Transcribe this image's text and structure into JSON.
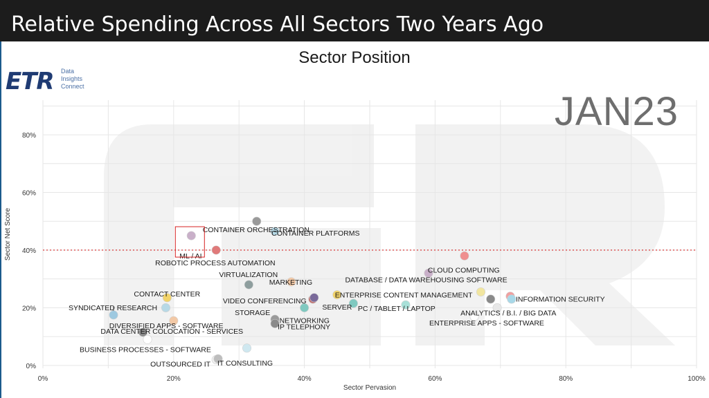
{
  "slide": {
    "title": "Relative Spending Across All Sectors Two Years Ago",
    "stamp": "JAN23"
  },
  "logo": {
    "mark": "ETR",
    "tagline": "Data Insights Connect"
  },
  "colors": {
    "title_bar": "#1c1c1c",
    "threshold_line": "#d62020",
    "highlight_box": "#d62020"
  },
  "chart_data": {
    "type": "scatter",
    "title": "Sector Position",
    "xlabel": "Sector Pervasion",
    "ylabel": "Sector Net Score",
    "xlim": [
      0,
      100
    ],
    "ylim": [
      -1,
      92
    ],
    "x_ticks": [
      "0%",
      "20%",
      "40%",
      "60%",
      "80%",
      "100%"
    ],
    "y_ticks": [
      "0%",
      "20%",
      "40%",
      "60%",
      "80%"
    ],
    "threshold_y": 40,
    "grid": true,
    "highlight": "ML / AI",
    "points": [
      {
        "label": "CONTAINER ORCHESTRATION",
        "x": 32.7,
        "y": 50,
        "color": "#9a9a9a"
      },
      {
        "label": "CONTAINER PLATFORMS",
        "x": 35.5,
        "y": 46.5,
        "color": "#b7d9e6"
      },
      {
        "label": "ML / AI",
        "x": 22.7,
        "y": 45,
        "color": "#c9b0c9"
      },
      {
        "label": "ROBOTIC PROCESS AUTOMATION",
        "x": 26.5,
        "y": 40,
        "color": "#e07a7a"
      },
      {
        "label": "CLOUD COMPUTING",
        "x": 64.5,
        "y": 38,
        "color": "#ef8f8f"
      },
      {
        "label": "",
        "x": 59,
        "y": 32,
        "color": "#c9b0c9"
      },
      {
        "label": "VIRTUALIZATION",
        "x": 31.5,
        "y": 28,
        "color": "#8e9e9e"
      },
      {
        "label": "MARKETING",
        "x": 38,
        "y": 29,
        "color": "#f3c9a6"
      },
      {
        "label": "VIDEO CONFERENCING",
        "x": 41.3,
        "y": 23,
        "color": "#c07070"
      },
      {
        "label": "",
        "x": 41.5,
        "y": 23.5,
        "color": "#7a6a9a"
      },
      {
        "label": "DATABASE / DATA WAREHOUSING SOFTWARE",
        "x": 67,
        "y": 25.5,
        "color": "#f2e6a0"
      },
      {
        "label": "ENTERPRISE CONTENT MANAGEMENT",
        "x": 45,
        "y": 24.5,
        "color": "#f2d36a"
      },
      {
        "label": "INFORMATION SECURITY",
        "x": 71.5,
        "y": 24,
        "color": "#f0a0a0"
      },
      {
        "label": "",
        "x": 71.7,
        "y": 23,
        "color": "#a8d8e8"
      },
      {
        "label": "",
        "x": 68.5,
        "y": 23,
        "color": "#8a8a8a"
      },
      {
        "label": "SERVER",
        "x": 47.5,
        "y": 21.5,
        "color": "#7fc9c0"
      },
      {
        "label": "PC / TABLET / LAPTOP",
        "x": 55.5,
        "y": 21,
        "color": "#a8e0d8"
      },
      {
        "label": "ANALYTICS / B.I. / BIG DATA",
        "x": 69.5,
        "y": 20,
        "color": "#e8e8e8"
      },
      {
        "label": "ENTERPRISE APPS - SOFTWARE",
        "x": 66,
        "y": 17,
        "color": "#ffffff"
      },
      {
        "label": "NETWORKING",
        "x": 40,
        "y": 20,
        "color": "#7fc9c0"
      },
      {
        "label": "SYNDICATED RESEARCH",
        "x": 10.8,
        "y": 17.5,
        "color": "#9ec9e0"
      },
      {
        "label": "CONTACT CENTER",
        "x": 19,
        "y": 23.5,
        "color": "#f2d36a"
      },
      {
        "label": "",
        "x": 18.8,
        "y": 20,
        "color": "#b7d9e6"
      },
      {
        "label": "DIVERSIFIED APPS - SOFTWARE",
        "x": 20,
        "y": 15.5,
        "color": "#f3c9a6"
      },
      {
        "label": "STORAGE",
        "x": 35.5,
        "y": 16,
        "color": "#9a9a9a"
      },
      {
        "label": "IP TELEPHONY",
        "x": 35.5,
        "y": 14.5,
        "color": "#8a8a8a"
      },
      {
        "label": "DATA CENTER COLOCATION - SERVICES",
        "x": 15.3,
        "y": 11.5,
        "color": "#8a8a8a"
      },
      {
        "label": "BUSINESS PROCESSES - SOFTWARE",
        "x": 16,
        "y": 9,
        "color": "#ffffff"
      },
      {
        "label": "",
        "x": 31.2,
        "y": 6,
        "color": "#cfe8f0"
      },
      {
        "label": "OUTSOURCED IT",
        "x": 26.5,
        "y": 2,
        "color": "#f0f0f0"
      },
      {
        "label": "IT CONSULTING",
        "x": 26.8,
        "y": 2.3,
        "color": "#bdbdbd"
      }
    ]
  }
}
